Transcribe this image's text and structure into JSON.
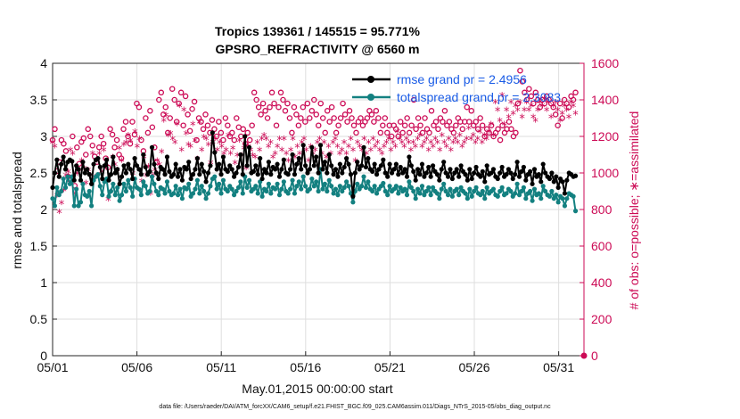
{
  "chart_data": {
    "type": "line",
    "title": "Tropics 139361 / 145515 = 95.771%",
    "subtitle": "GPSRO_REFRACTIVITY @ 6560 m",
    "xlabel": "May.01,2015 00:00:00 start",
    "ylabel": "rmse and totalspread",
    "ylabel_right": "# of obs: o=possible; ∗=assimilated",
    "footer": "data file: /Users/raeder/DAI/ATM_forcXX/CAM6_setup/f.e21.FHIST_BGC.f09_025.CAM6assim.011/Diags_NTrS_2015-05/obs_diag_output.nc",
    "xlim": [
      0,
      31.5
    ],
    "ylim": [
      0,
      4
    ],
    "ylim_right": [
      0,
      1600
    ],
    "x_tick_values": [
      0,
      5,
      10,
      15,
      20,
      25,
      30
    ],
    "x_tick_labels": [
      "05/01",
      "05/06",
      "05/11",
      "05/16",
      "05/21",
      "05/26",
      "05/31"
    ],
    "y_tick_labels": [
      "0",
      "0.5",
      "1",
      "1.5",
      "2",
      "2.5",
      "3",
      "3.5",
      "4"
    ],
    "y_right_tick_labels": [
      "0",
      "200",
      "400",
      "600",
      "800",
      "1000",
      "1200",
      "1400",
      "1600"
    ],
    "grid": true,
    "legend_position": "top-right",
    "colors": {
      "rmse": "#000000",
      "spread": "#138080",
      "obs": "#cc0a55"
    },
    "series": [
      {
        "name": "rmse grand pr = 2.4956",
        "axis": "left",
        "marker": "filled-circle",
        "values": [
          2.3,
          2.5,
          2.68,
          2.45,
          2.62,
          2.72,
          2.55,
          2.65,
          2.68,
          2.66,
          2.4,
          2.6,
          2.55,
          2.4,
          2.65,
          2.5,
          2.55,
          2.48,
          2.35,
          2.62,
          2.68,
          2.7,
          2.58,
          2.42,
          2.6,
          2.68,
          2.4,
          2.48,
          2.72,
          2.5,
          2.55,
          2.35,
          2.45,
          2.6,
          2.5,
          2.62,
          2.55,
          2.42,
          2.7,
          2.6,
          2.55,
          2.48,
          2.75,
          2.58,
          2.48,
          2.52,
          2.85,
          2.62,
          2.5,
          2.42,
          2.58,
          2.55,
          2.48,
          2.72,
          2.52,
          2.45,
          2.48,
          2.62,
          2.45,
          2.55,
          2.4,
          2.58,
          2.55,
          2.65,
          2.42,
          2.48,
          2.55,
          2.7,
          2.48,
          2.62,
          2.52,
          2.38,
          2.5,
          2.6,
          3.05,
          2.78,
          2.55,
          2.62,
          2.48,
          2.72,
          2.55,
          2.52,
          2.6,
          2.55,
          2.45,
          2.5,
          2.58,
          2.75,
          2.48,
          3.0,
          2.6,
          2.85,
          2.5,
          2.52,
          2.6,
          2.48,
          2.7,
          2.42,
          2.55,
          2.5,
          2.65,
          2.48,
          2.58,
          2.55,
          2.62,
          2.45,
          2.55,
          2.68,
          2.5,
          2.48,
          2.55,
          2.75,
          2.48,
          2.62,
          2.7,
          2.55,
          2.88,
          2.6,
          2.5,
          2.55,
          2.85,
          2.6,
          2.72,
          2.5,
          2.88,
          2.55,
          2.65,
          2.5,
          2.75,
          2.6,
          2.48,
          2.55,
          2.45,
          2.62,
          2.5,
          2.58,
          2.7,
          2.62,
          2.48,
          2.18,
          2.5,
          2.65,
          2.55,
          2.6,
          2.85,
          2.58,
          2.7,
          2.55,
          2.52,
          2.62,
          2.48,
          2.55,
          2.6,
          2.68,
          2.5,
          2.45,
          2.62,
          2.5,
          2.55,
          2.62,
          2.48,
          2.58,
          2.5,
          2.55,
          2.45,
          2.72,
          2.6,
          2.52,
          2.4,
          2.55,
          2.48,
          2.62,
          2.45,
          2.5,
          2.58,
          2.45,
          2.6,
          2.52,
          2.48,
          2.4,
          2.55,
          2.65,
          2.5,
          2.45,
          2.55,
          2.42,
          2.5,
          2.55,
          2.45,
          2.6,
          2.52,
          2.48,
          2.4,
          2.55,
          2.42,
          2.5,
          2.58,
          2.48,
          2.45,
          2.52,
          2.38,
          2.6,
          2.48,
          2.5,
          2.55,
          2.45,
          2.42,
          2.5,
          2.58,
          2.45,
          2.48,
          2.55,
          2.5,
          2.42,
          2.48,
          2.65,
          2.45,
          2.52,
          2.58,
          2.4,
          2.48,
          2.52,
          2.35,
          2.55,
          2.45,
          2.48,
          2.38,
          2.62,
          2.5,
          2.45,
          2.42,
          2.5,
          2.38,
          2.45,
          2.3,
          2.42,
          2.38,
          2.22,
          2.4,
          2.5,
          2.48,
          2.45,
          2.46
        ]
      },
      {
        "name": "totalspread grand pr = 2.3083",
        "axis": "left",
        "marker": "filled-circle",
        "values": [
          2.15,
          2.05,
          2.3,
          2.2,
          2.25,
          2.42,
          2.3,
          2.45,
          2.35,
          2.45,
          2.05,
          2.28,
          2.05,
          2.1,
          2.35,
          2.2,
          2.18,
          2.25,
          2.05,
          2.4,
          2.45,
          2.48,
          2.32,
          2.2,
          2.38,
          2.42,
          2.18,
          2.25,
          2.35,
          2.2,
          2.3,
          2.12,
          2.2,
          2.35,
          2.25,
          2.4,
          2.3,
          2.18,
          2.42,
          2.3,
          2.28,
          2.2,
          2.38,
          2.32,
          2.22,
          2.25,
          2.45,
          2.35,
          2.25,
          2.2,
          2.3,
          2.28,
          2.22,
          2.38,
          2.25,
          2.2,
          2.22,
          2.32,
          2.2,
          2.28,
          2.15,
          2.3,
          2.28,
          2.35,
          2.18,
          2.22,
          2.28,
          2.4,
          2.22,
          2.32,
          2.25,
          2.15,
          2.22,
          2.32,
          2.42,
          2.45,
          2.28,
          2.35,
          2.22,
          2.4,
          2.28,
          2.25,
          2.32,
          2.28,
          2.2,
          2.25,
          2.3,
          2.38,
          2.22,
          2.45,
          2.3,
          2.4,
          2.25,
          2.28,
          2.32,
          2.22,
          2.38,
          2.18,
          2.28,
          2.25,
          2.35,
          2.22,
          2.3,
          2.28,
          2.35,
          2.2,
          2.28,
          2.38,
          2.25,
          2.22,
          2.28,
          2.4,
          2.22,
          2.32,
          2.38,
          2.28,
          2.45,
          2.32,
          2.25,
          2.28,
          2.42,
          2.32,
          2.38,
          2.25,
          2.55,
          2.28,
          2.35,
          2.25,
          2.4,
          2.32,
          2.22,
          2.28,
          2.2,
          2.32,
          2.25,
          2.3,
          2.38,
          2.32,
          2.22,
          2.1,
          2.25,
          2.35,
          2.28,
          2.32,
          2.45,
          2.3,
          2.38,
          2.28,
          2.25,
          2.32,
          2.22,
          2.28,
          2.32,
          2.36,
          2.25,
          2.2,
          2.32,
          2.25,
          2.28,
          2.32,
          2.22,
          2.3,
          2.25,
          2.28,
          2.2,
          2.38,
          2.3,
          2.25,
          2.15,
          2.28,
          2.22,
          2.32,
          2.2,
          2.25,
          2.3,
          2.2,
          2.3,
          2.25,
          2.22,
          2.15,
          2.28,
          2.35,
          2.25,
          2.2,
          2.28,
          2.18,
          2.25,
          2.28,
          2.2,
          2.3,
          2.25,
          2.22,
          2.15,
          2.28,
          2.18,
          2.25,
          2.3,
          2.22,
          2.2,
          2.25,
          2.15,
          2.3,
          2.22,
          2.25,
          2.28,
          2.2,
          2.18,
          2.25,
          2.3,
          2.2,
          2.22,
          2.28,
          2.25,
          2.18,
          2.22,
          2.35,
          2.2,
          2.25,
          2.3,
          2.15,
          2.22,
          2.25,
          2.12,
          2.28,
          2.2,
          2.22,
          2.15,
          2.32,
          2.25,
          2.2,
          2.18,
          2.25,
          2.15,
          2.2,
          2.1,
          2.18,
          2.15,
          2.05,
          2.15,
          2.22,
          2.2,
          2.18,
          1.98
        ]
      },
      {
        "name": "possible obs",
        "axis": "right",
        "marker": "open-circle",
        "values": [
          1180,
          1240,
          1010,
          1060,
          1180,
          1160,
          1120,
          980,
          960,
          1200,
          930,
          1140,
          1050,
          1170,
          1190,
          1100,
          1240,
          1200,
          1150,
          1090,
          1060,
          1140,
          1200,
          1160,
          1080,
          1030,
          1240,
          1210,
          1140,
          1180,
          1100,
          1080,
          1240,
          1280,
          1200,
          1160,
          1280,
          1210,
          1380,
          1360,
          1180,
          1120,
          1300,
          1220,
          1340,
          1250,
          1140,
          1060,
          1400,
          1440,
          1320,
          1360,
          1220,
          1300,
          1460,
          1400,
          1280,
          1380,
          1440,
          1260,
          1420,
          1320,
          1230,
          1350,
          1390,
          1180,
          1300,
          1280,
          1240,
          1320,
          1260,
          1220,
          1290,
          1240,
          1200,
          1280,
          1220,
          1180,
          1300,
          1260,
          1200,
          1220,
          1180,
          1300,
          1250,
          1200,
          1240,
          1160,
          1220,
          1180,
          1260,
          1440,
          1400,
          1360,
          1320,
          1380,
          1340,
          1300,
          1360,
          1440,
          1380,
          1260,
          1360,
          1440,
          1400,
          1340,
          1380,
          1300,
          1220,
          1360,
          1320,
          1260,
          1300,
          1360,
          1280,
          1380,
          1300,
          1340,
          1400,
          1320,
          1260,
          1380,
          1300,
          1220,
          1340,
          1280,
          1360,
          1300,
          1220,
          1260,
          1300,
          1380,
          1320,
          1280,
          1340,
          1300,
          1260,
          1220,
          1280,
          1300,
          1260,
          1280,
          1300,
          1340,
          1320,
          1280,
          1340,
          1300,
          1220,
          1260,
          1300,
          1220,
          1260,
          1200,
          1260,
          1240,
          1200,
          1280,
          1220,
          1260,
          1300,
          1220,
          1260,
          1400,
          1240,
          1300,
          1260,
          1220,
          1300,
          1240,
          1220,
          1340,
          1260,
          1280,
          1240,
          1300,
          1280,
          1340,
          1260,
          1280,
          1240,
          1220,
          1260,
          1300,
          1280,
          1240,
          1280,
          1360,
          1280,
          1340,
          1260,
          1280,
          1240,
          1300,
          1260,
          1200,
          1240,
          1220,
          1260,
          1200,
          1220,
          1240,
          1180,
          1260,
          1220,
          1240,
          1280,
          1240,
          1200,
          1220,
          1380,
          1560,
          1500,
          1440,
          1400,
          1460,
          1420,
          1380,
          1440,
          1400,
          1360,
          1400,
          1380,
          1420,
          1400,
          1380,
          1360,
          1320,
          1260,
          1380,
          1300,
          1400,
          1380,
          1360,
          1420,
          1400,
          1440
        ]
      },
      {
        "name": "assimilated obs",
        "axis": "right",
        "marker": "asterisk",
        "values": [
          1160,
          1140,
          870,
          780,
          830,
          900,
          980,
          1000,
          1120,
          1100,
          880,
          990,
          1010,
          1060,
          1020,
          940,
          1010,
          980,
          1100,
          970,
          1060,
          1100,
          1000,
          1120,
          1030,
          850,
          890,
          1080,
          1040,
          1010,
          1130,
          1060,
          1150,
          1160,
          1200,
          1170,
          990,
          1220,
          1140,
          1180,
          950,
          1080,
          980,
          1030,
          880,
          980,
          1010,
          1060,
          1040,
          1110,
          1280,
          1310,
          1200,
          1210,
          1180,
          1160,
          1260,
          1360,
          1120,
          1340,
          1210,
          1150,
          1140,
          1260,
          1170,
          1070,
          1270,
          1120,
          1190,
          1180,
          1150,
          1050,
          1160,
          1180,
          1120,
          1160,
          1140,
          1100,
          1120,
          1200,
          1100,
          1130,
          1050,
          1090,
          1170,
          1090,
          1130,
          1020,
          1140,
          1120,
          1090,
          1080,
          1160,
          1120,
          1180,
          1200,
          1180,
          1140,
          1160,
          1080,
          1100,
          1140,
          1180,
          1120,
          1180,
          1100,
          1060,
          1120,
          1180,
          1080,
          1140,
          1100,
          1160,
          1180,
          1120,
          1060,
          1140,
          1100,
          1120,
          1160,
          1180,
          1100,
          1160,
          1080,
          1140,
          1100,
          1160,
          1180,
          1140,
          1100,
          1120,
          1160,
          1100,
          1140,
          1180,
          1120,
          1060,
          1160,
          1140,
          1120,
          1180,
          1100,
          1160,
          1120,
          1180,
          1140,
          1160,
          1120,
          1100,
          1140,
          1160,
          1180,
          1120,
          1160,
          1140,
          1220,
          1180,
          1160,
          1140,
          1180,
          1160,
          1120,
          1160,
          1140,
          1180,
          1200,
          1140,
          1160,
          1180,
          1120,
          1160,
          1140,
          1180,
          1160,
          1120,
          1200,
          1160,
          1140,
          1180,
          1120,
          1160,
          1180,
          1160,
          1200,
          1140,
          1160,
          1180,
          1240,
          1180,
          1200,
          1160,
          1180,
          1220,
          1160,
          1200,
          1180,
          1220,
          1260,
          1200,
          1380,
          1340,
          1280,
          1420,
          1260,
          1340,
          1300,
          1380,
          1320,
          1360,
          1340,
          1380,
          1300,
          1340,
          1380,
          1340,
          1360,
          1300,
          1280,
          1340,
          1380,
          1360,
          1400,
          1340,
          1380,
          1300,
          1360,
          1380,
          1340,
          1280,
          1320,
          1360,
          1340,
          1300,
          1380,
          1360,
          1320
        ]
      }
    ]
  }
}
